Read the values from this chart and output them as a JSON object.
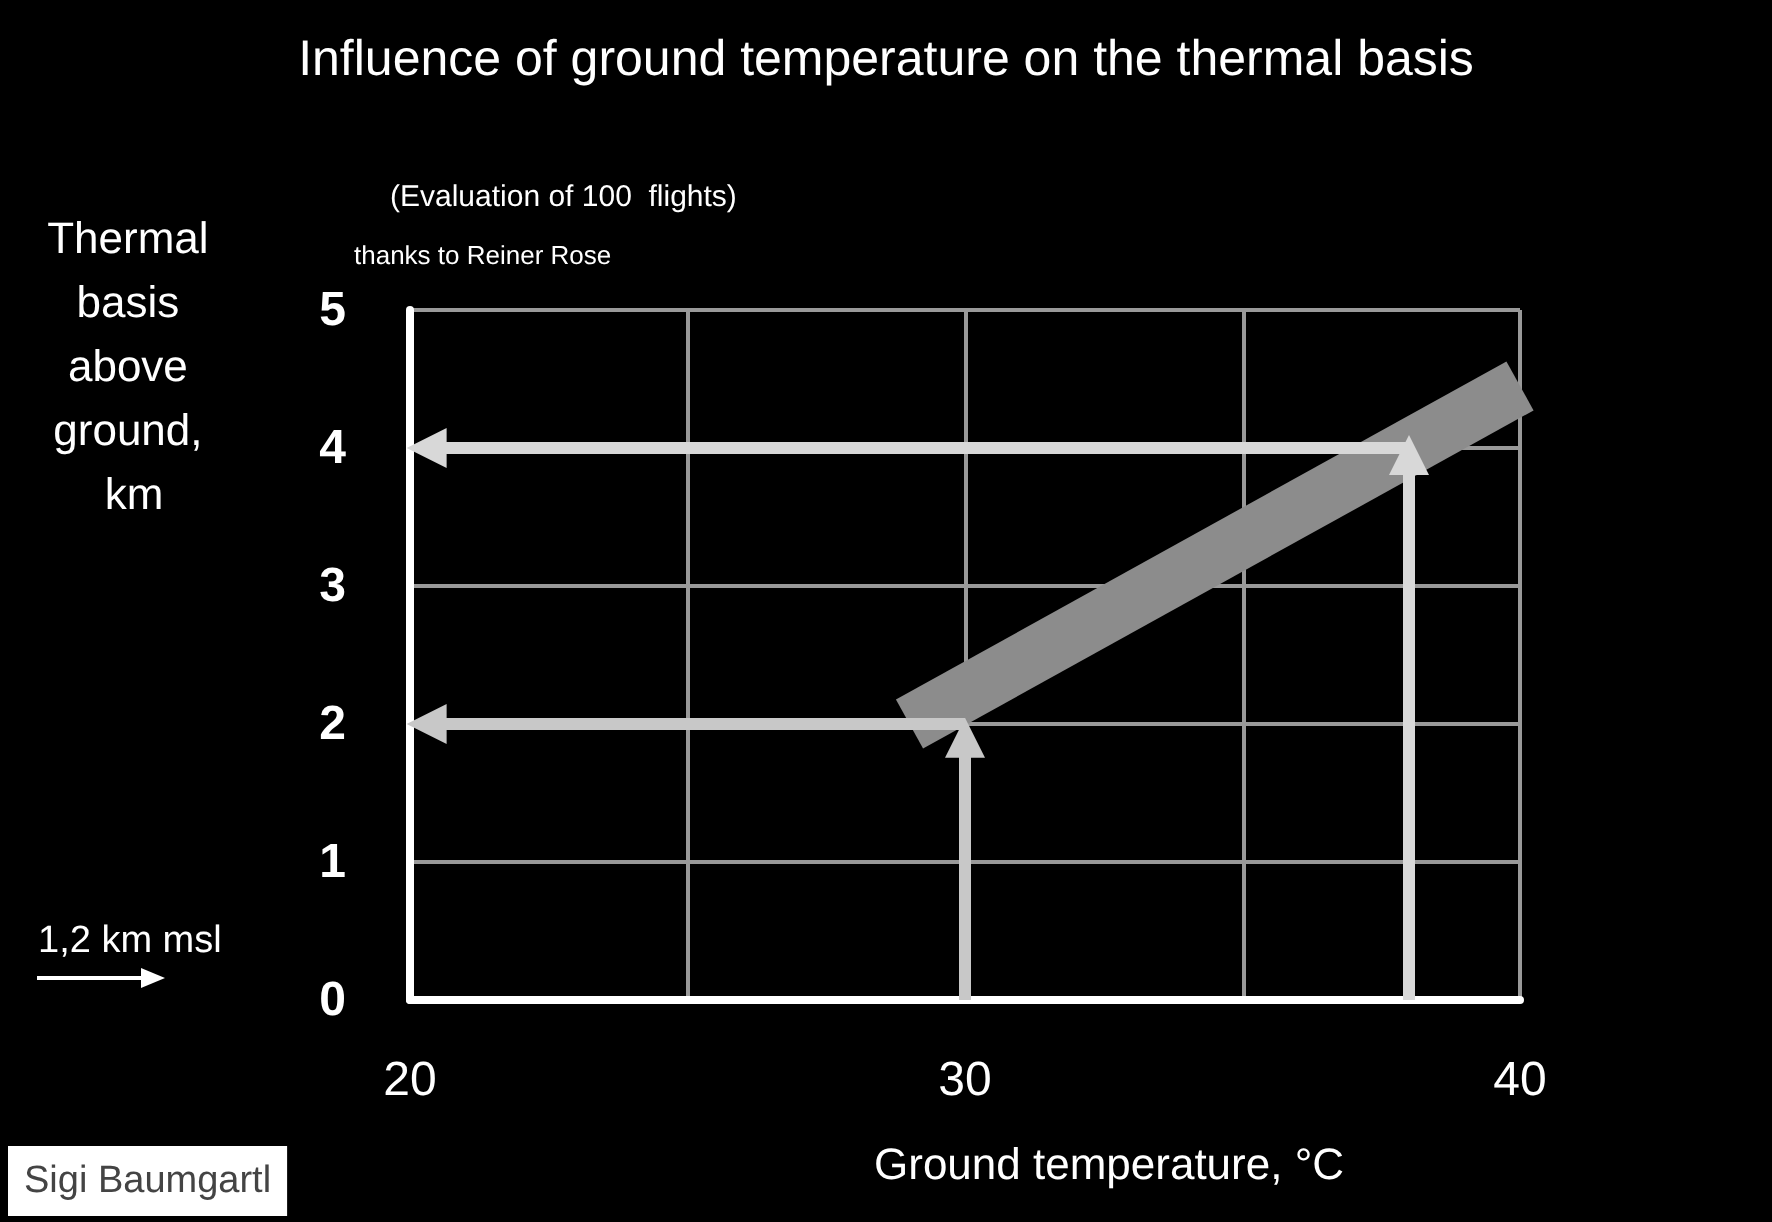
{
  "chart_data": {
    "type": "line",
    "title": "Influence of ground temperature on the thermal basis",
    "subtitle": "(Evaluation of 100  flights)",
    "xlabel": "Ground temperature, °C",
    "ylabel": "Thermal basis above ground, km",
    "annotations": [
      "thanks to Reiner Rose",
      "1,2 km msl",
      "Sigi Baumgartl"
    ],
    "xlim": [
      20,
      40
    ],
    "xticks": [
      20,
      {
        "value": 25,
        "label": null
      },
      30,
      {
        "value": 35,
        "label": null
      },
      40
    ],
    "ylim": [
      0,
      5
    ],
    "yticks": [
      0,
      1,
      2,
      3,
      4,
      5
    ],
    "grid": true,
    "series": [
      {
        "color": "#8c8c8c",
        "x": [
          29,
          40
        ],
        "values": [
          2,
          4.45
        ]
      },
      {
        "color": "#c8c8c8",
        "marker": "triangle",
        "x": [
          30,
          30
        ],
        "values": [
          0,
          1.9
        ]
      },
      {
        "color": "#c8c8c8",
        "marker": "triangle",
        "x": [
          30,
          20.3
        ],
        "values": [
          2,
          2
        ]
      },
      {
        "color": "#d8d8d8",
        "marker": "triangle",
        "x": [
          38,
          38
        ],
        "values": [
          0,
          3.95
        ]
      },
      {
        "color": "#d8d8d8",
        "marker": "triangle",
        "x": [
          38,
          20.3
        ],
        "values": [
          4,
          4
        ]
      }
    ]
  }
}
